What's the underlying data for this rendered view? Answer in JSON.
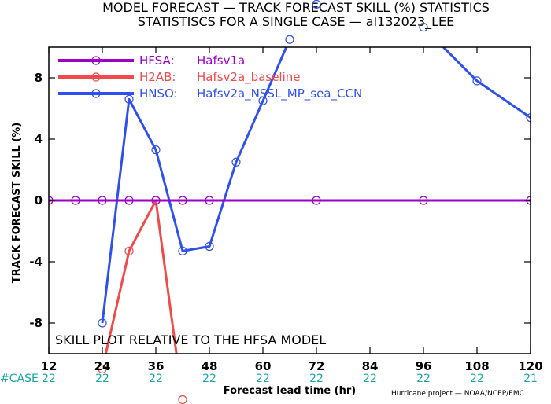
{
  "header": {
    "title_line1": "MODEL FORECAST — TRACK FORECAST SKILL (%) STATISTICS",
    "title_line2": "STATISTISCS FOR A SINGLE CASE — al132023_LEE"
  },
  "annotation": "SKILL PLOT RELATIVE TO THE HFSA MODEL",
  "credit": "Hurricane project — NOAA/NCEP/EMC",
  "case_label": "#CASE",
  "chart_data": {
    "type": "line",
    "xlabel": "Forecast lead time (hr)",
    "ylabel": "TRACK FORECAST SKILL (%)",
    "xlim": [
      12,
      120
    ],
    "ylim": [
      -10,
      10
    ],
    "x_ticks": [
      12,
      24,
      36,
      48,
      60,
      72,
      84,
      96,
      108,
      120
    ],
    "y_ticks": [
      -8,
      -4,
      0,
      4,
      8
    ],
    "case_counts": [
      "22",
      "22",
      "22",
      "22",
      "22",
      "22",
      "22",
      "22",
      "22",
      "21"
    ],
    "legend_position": "top-left",
    "series": [
      {
        "name": "HFSA:",
        "label": "Hafsv1a",
        "color": "#9b00c8",
        "x": [
          12,
          18,
          24,
          30,
          36,
          42,
          48,
          72,
          96,
          120
        ],
        "y": [
          0,
          0,
          0,
          0,
          0,
          0,
          0,
          0,
          0,
          0
        ]
      },
      {
        "name": "H2AB:",
        "label": "Hafsv2a_baseline",
        "color": "#f04a4a",
        "x": [
          24,
          30,
          36,
          42
        ],
        "y": [
          -11,
          -3.3,
          0,
          -13
        ]
      },
      {
        "name": "HNSO:",
        "label": "Hafsv2a_NSSL_MP_sea_CCN",
        "color": "#3050ee",
        "x": [
          24,
          30,
          36,
          42,
          48,
          54,
          60,
          66,
          72,
          96,
          108,
          120
        ],
        "y": [
          -8,
          6.6,
          3.3,
          -3.3,
          -3,
          2.5,
          6.5,
          10.5,
          12.8,
          11.3,
          7.8,
          5.4
        ]
      }
    ]
  }
}
